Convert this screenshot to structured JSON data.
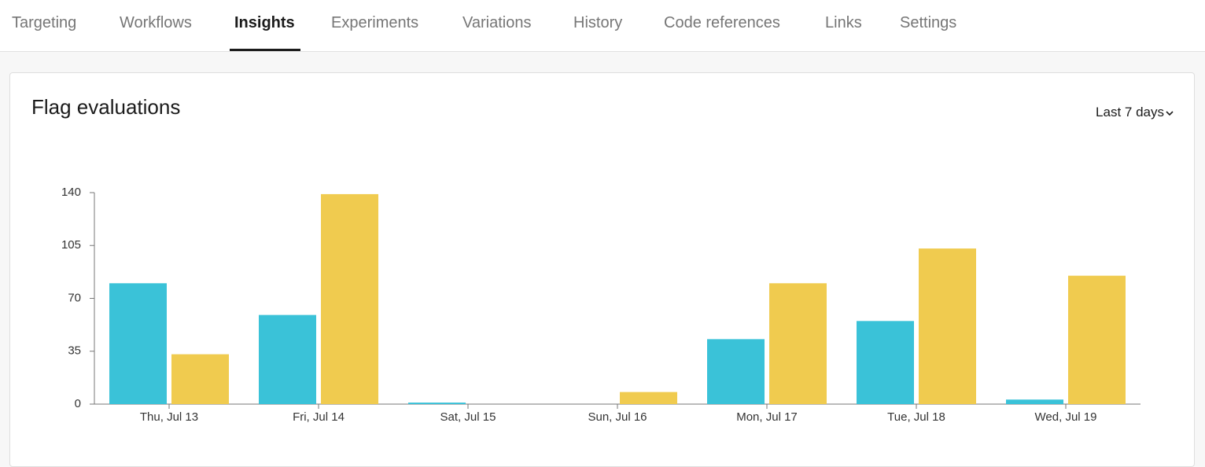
{
  "tabs": [
    "Targeting",
    "Workflows",
    "Insights",
    "Experiments",
    "Variations",
    "History",
    "Code references",
    "Links",
    "Settings"
  ],
  "card": {
    "title": "Flag evaluations",
    "range_selector": "Last 7 days"
  },
  "chart_data": {
    "type": "bar",
    "categories": [
      "Thu, Jul 13",
      "Fri, Jul 14",
      "Sat, Jul 15",
      "Sun, Jul 16",
      "Mon, Jul 17",
      "Tue, Jul 18",
      "Wed, Jul 19"
    ],
    "series": [
      {
        "color": "#3ac2d8",
        "values": [
          80,
          59,
          1,
          0,
          43,
          55,
          3
        ]
      },
      {
        "color": "#f0cb4f",
        "values": [
          33,
          139,
          0,
          8,
          80,
          103,
          85
        ]
      }
    ],
    "ylim": [
      0,
      140
    ],
    "yticks": [
      0,
      35,
      70,
      105,
      140
    ],
    "grid": false
  }
}
